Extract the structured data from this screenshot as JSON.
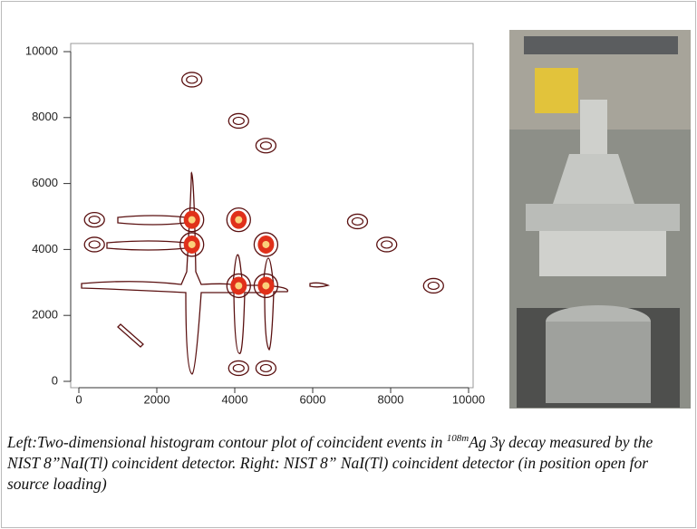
{
  "chart_data": {
    "type": "contour",
    "xlim": [
      0,
      10000
    ],
    "ylim": [
      0,
      10000
    ],
    "xticks": [
      0,
      2000,
      4000,
      6000,
      8000,
      10000
    ],
    "yticks": [
      0,
      2000,
      4000,
      6000,
      8000,
      10000
    ],
    "color": "#5a1010",
    "peaks": {
      "x": [
        2900,
        4100,
        4800,
        400,
        400,
        2900,
        2900,
        4100,
        4800,
        4100,
        4800,
        7150,
        7900,
        9100,
        4100,
        4800
      ],
      "y": [
        9150,
        7900,
        7150,
        4900,
        4150,
        4900,
        4150,
        4900,
        4150,
        2900,
        2900,
        4850,
        4150,
        2900,
        400,
        400
      ],
      "filled": [
        false,
        false,
        false,
        false,
        false,
        true,
        true,
        true,
        true,
        true,
        true,
        false,
        false,
        false,
        false,
        false
      ]
    },
    "caption": [
      "Left:Two-dimensional histogram contour plot of coincident events in ",
      "108m",
      "Ag 3γ decay measured by the NIST 8”NaI(Tl) coincident detector.  Right: NIST 8” NaI(Tl) coincident detector (in position open for source loading)"
    ]
  }
}
